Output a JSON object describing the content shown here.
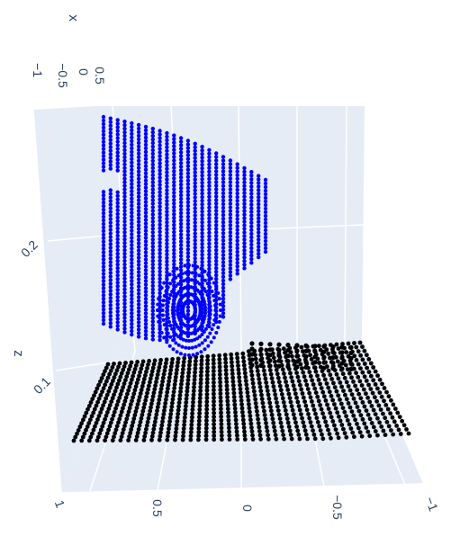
{
  "chart_data": {
    "type": "scatter3d",
    "axes": {
      "x": {
        "title": "x",
        "range": [
          -1,
          0.5
        ],
        "ticks": [
          "−1",
          "−0.5",
          "0",
          "0.5"
        ]
      },
      "y": {
        "title": "",
        "range": [
          -1,
          1
        ],
        "ticks": [
          "1",
          "0.5",
          "0",
          "−0.5",
          "−1"
        ]
      },
      "z": {
        "title": "z",
        "range": [
          0.03,
          0.29
        ],
        "ticks": [
          "0.1",
          "0.2"
        ]
      }
    },
    "grid": true,
    "scene_background": "#e5ecf6",
    "series": [
      {
        "color": "#0000ff",
        "description_role": "upper object point cloud",
        "mark": "dense vertical columns of points"
      },
      {
        "color": "#000000",
        "description_role": "ground plane point cloud",
        "mark": "dense sloping stripes of points"
      }
    ]
  }
}
